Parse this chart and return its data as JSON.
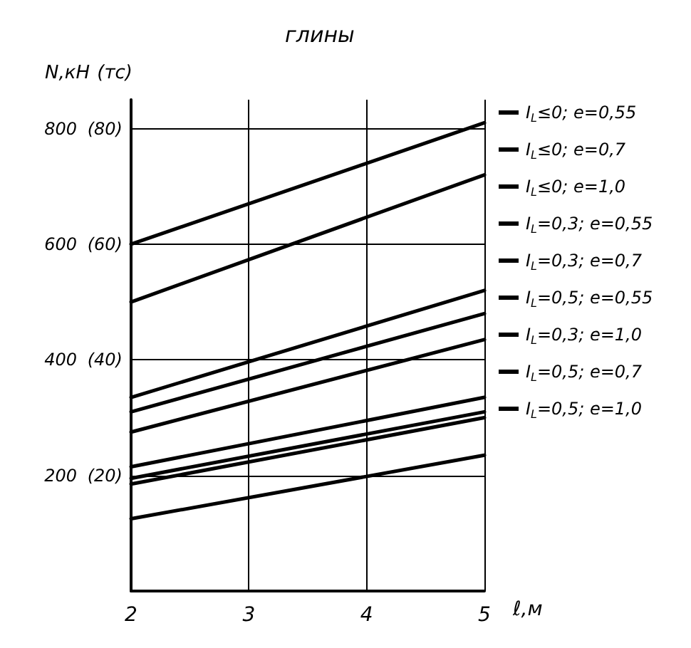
{
  "chart_data": {
    "type": "line",
    "title": "глины",
    "xlabel": "ℓ,м",
    "ylabel": "N,кН",
    "y2label": "(тс)",
    "x": [
      2,
      5
    ],
    "xlim": [
      2,
      5
    ],
    "xticks": [
      2,
      3,
      4,
      5
    ],
    "ylim": [
      0,
      850
    ],
    "yticks": [
      200,
      400,
      600,
      800
    ],
    "y2lim": [
      0,
      85
    ],
    "y2ticks": [
      {
        "value": 20,
        "label": "(20)"
      },
      {
        "value": 40,
        "label": "(40)"
      },
      {
        "value": 60,
        "label": "(60)"
      },
      {
        "value": 80,
        "label": "(80)"
      }
    ],
    "grid": true,
    "legend": "right",
    "marker": "none",
    "line_style": "solid",
    "series": [
      {
        "name": "I$_{L}$≤0; e=0,55",
        "color": "#000000",
        "values": [
          600,
          810
        ]
      },
      {
        "name": "I$_{L}$≤0; e=0,7",
        "color": "#000000",
        "values": [
          500,
          720
        ]
      },
      {
        "name": "I$_{L}$≤0; e=1,0",
        "color": "#000000",
        "values": [
          335,
          520
        ]
      },
      {
        "name": "I$_{L}$=0,3; e=0,55",
        "color": "#000000",
        "values": [
          310,
          480
        ]
      },
      {
        "name": "I$_{L}$=0,3; e=0,7",
        "color": "#000000",
        "values": [
          275,
          435
        ]
      },
      {
        "name": "I$_{L}$=0,5; e=0,55",
        "color": "#000000",
        "values": [
          215,
          335
        ]
      },
      {
        "name": "I$_{L}$=0,3; e=1,0",
        "color": "#000000",
        "values": [
          195,
          310
        ]
      },
      {
        "name": "I$_{L}$=0,5; e=0,7",
        "color": "#000000",
        "values": [
          185,
          300
        ]
      },
      {
        "name": "I$_{L}$=0,5; e=1,0",
        "color": "#000000",
        "values": [
          125,
          235
        ]
      }
    ]
  }
}
